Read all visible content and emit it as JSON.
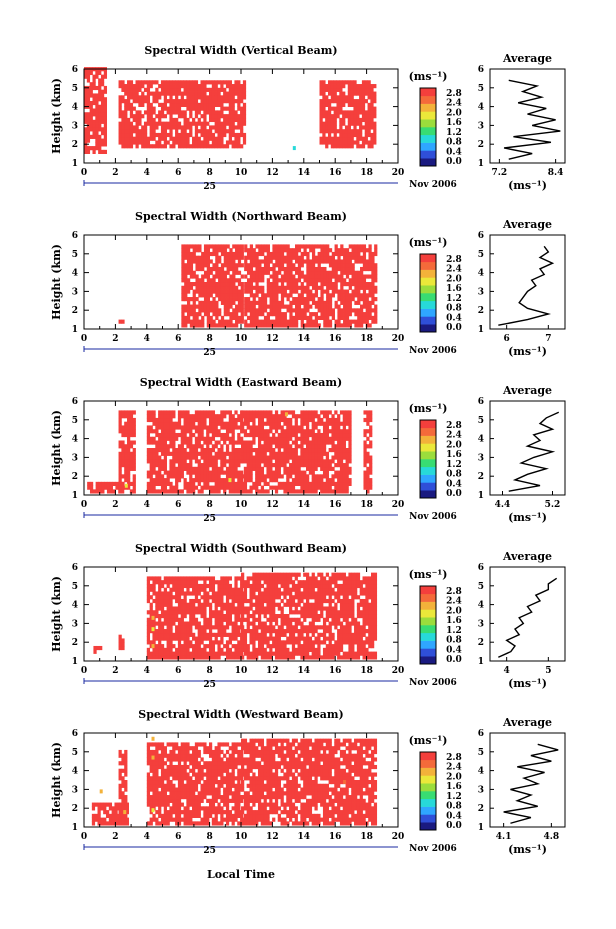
{
  "chart_data": {
    "type": "heatmap",
    "shared": {
      "time_ticks": [
        "0",
        "2",
        "4",
        "6",
        "8",
        "10",
        "12",
        "14",
        "16",
        "18",
        "20"
      ],
      "time_range": [
        0,
        20
      ],
      "height_ticks": [
        "1",
        "2",
        "3",
        "4",
        "5",
        "6"
      ],
      "height_range": [
        1,
        6
      ],
      "ylabel": "Height (km)",
      "xlabel": "Local Time",
      "day_label": "25",
      "date_label": "Nov 2006",
      "unit_label": "(ms⁻¹)",
      "colorbar_ticks": [
        "0.0",
        "0.4",
        "0.8",
        "1.2",
        "1.6",
        "2.0",
        "2.4",
        "2.8"
      ],
      "colorbar_range": [
        0,
        3.0
      ],
      "colormap": [
        "#1a1a80",
        "#2f4fd8",
        "#2fa6ff",
        "#27d9d9",
        "#38dc72",
        "#9bdd3c",
        "#ebe83a",
        "#f3b23a",
        "#f46a3a",
        "#f43f3c"
      ],
      "average_title": "Average",
      "average_unit": "(ms⁻¹)"
    },
    "panels": [
      {
        "title": "Spectral Width (Vertical Beam)",
        "coverage": [
          [
            0,
            1.3,
            1.5,
            6.0
          ],
          [
            2.2,
            10.3,
            1.8,
            5.4
          ],
          [
            15.0,
            18.5,
            1.8,
            5.4
          ]
        ],
        "dominant_value": 3.0,
        "sparse_points": [
          [
            13.3,
            1.7,
            1.1
          ]
        ],
        "average_profile": {
          "xticks": [
            "7.2",
            "8.4"
          ],
          "xrange": [
            7.0,
            8.6
          ],
          "heights": [
            1.2,
            1.5,
            1.8,
            2.1,
            2.4,
            2.7,
            3.0,
            3.3,
            3.6,
            3.9,
            4.2,
            4.5,
            4.8,
            5.1,
            5.4
          ],
          "values": [
            7.4,
            7.9,
            7.3,
            8.3,
            7.5,
            8.5,
            7.9,
            8.4,
            7.8,
            8.2,
            7.6,
            8.1,
            7.7,
            8.0,
            7.4
          ]
        }
      },
      {
        "title": "Spectral Width (Northward Beam)",
        "coverage": [
          [
            2.2,
            2.5,
            1.1,
            1.4
          ],
          [
            6.2,
            10.0,
            1.1,
            5.4
          ],
          [
            10.2,
            18.5,
            1.1,
            5.4
          ]
        ],
        "dominant_value": 3.0,
        "sparse_points": [],
        "average_profile": {
          "xticks": [
            "6",
            "7"
          ],
          "xrange": [
            5.6,
            7.4
          ],
          "heights": [
            1.2,
            1.5,
            1.8,
            2.1,
            2.4,
            2.7,
            3.0,
            3.3,
            3.6,
            3.9,
            4.2,
            4.5,
            4.8,
            5.1,
            5.4
          ],
          "values": [
            5.8,
            6.5,
            7.0,
            6.5,
            6.3,
            6.4,
            6.5,
            6.7,
            6.6,
            6.9,
            6.8,
            7.1,
            6.8,
            7.0,
            6.9
          ]
        }
      },
      {
        "title": "Spectral Width (Eastward Beam)",
        "coverage": [
          [
            0.2,
            2.5,
            1.1,
            1.6
          ],
          [
            2.2,
            3.2,
            1.1,
            5.4
          ],
          [
            4.0,
            10.0,
            1.1,
            5.4
          ],
          [
            10.0,
            17.0,
            1.1,
            5.4
          ],
          [
            17.8,
            18.3,
            1.1,
            5.4
          ]
        ],
        "dominant_value": 3.0,
        "sparse_points": [
          [
            2.6,
            1.4,
            1.8
          ],
          [
            9.2,
            1.7,
            2.0
          ],
          [
            12.8,
            5.2,
            2.2
          ]
        ],
        "average_profile": {
          "xticks": [
            "4.4",
            "5.2"
          ],
          "xrange": [
            4.2,
            5.4
          ],
          "heights": [
            1.2,
            1.5,
            1.8,
            2.1,
            2.4,
            2.7,
            3.0,
            3.3,
            3.6,
            3.9,
            4.2,
            4.5,
            4.8,
            5.1,
            5.4
          ],
          "values": [
            4.5,
            5.0,
            4.6,
            4.8,
            5.1,
            4.7,
            4.9,
            5.2,
            4.8,
            5.0,
            4.9,
            5.2,
            5.0,
            5.1,
            5.3
          ]
        }
      },
      {
        "title": "Spectral Width (Southward Beam)",
        "coverage": [
          [
            0.6,
            1.0,
            1.4,
            1.7
          ],
          [
            2.2,
            2.5,
            1.6,
            2.3
          ],
          [
            4.0,
            10.0,
            1.1,
            5.4
          ],
          [
            10.0,
            18.5,
            1.1,
            5.6
          ]
        ],
        "dominant_value": 3.0,
        "sparse_points": [
          [
            4.3,
            3.2,
            2.3
          ],
          [
            4.3,
            2.6,
            2.0
          ],
          [
            4.3,
            1.7,
            2.2
          ]
        ],
        "average_profile": {
          "xticks": [
            "4",
            "5"
          ],
          "xrange": [
            3.6,
            5.4
          ],
          "heights": [
            1.2,
            1.5,
            1.8,
            2.1,
            2.4,
            2.7,
            3.0,
            3.3,
            3.6,
            3.9,
            4.2,
            4.5,
            4.8,
            5.1,
            5.4
          ],
          "values": [
            3.8,
            4.1,
            4.2,
            4.0,
            4.3,
            4.2,
            4.4,
            4.3,
            4.6,
            4.5,
            4.8,
            4.7,
            5.0,
            5.0,
            5.2
          ]
        }
      },
      {
        "title": "Spectral Width (Westward Beam)",
        "coverage": [
          [
            0.5,
            2.8,
            1.1,
            2.3
          ],
          [
            2.2,
            2.7,
            1.1,
            5.0
          ],
          [
            4.0,
            10.0,
            1.1,
            5.4
          ],
          [
            10.0,
            18.5,
            1.1,
            5.6
          ]
        ],
        "dominant_value": 3.0,
        "sparse_points": [
          [
            1.0,
            2.8,
            2.3
          ],
          [
            4.3,
            5.6,
            2.1
          ],
          [
            4.3,
            4.6,
            2.4
          ],
          [
            2.5,
            1.7,
            2.2
          ],
          [
            4.3,
            1.8,
            1.9
          ],
          [
            16.5,
            3.3,
            2.6
          ]
        ],
        "average_profile": {
          "xticks": [
            "4.1",
            "4.8"
          ],
          "xrange": [
            3.9,
            5.0
          ],
          "heights": [
            1.2,
            1.5,
            1.8,
            2.1,
            2.4,
            2.7,
            3.0,
            3.3,
            3.6,
            3.9,
            4.2,
            4.5,
            4.8,
            5.1,
            5.4
          ],
          "values": [
            4.2,
            4.5,
            4.1,
            4.6,
            4.3,
            4.5,
            4.2,
            4.6,
            4.4,
            4.7,
            4.3,
            4.8,
            4.5,
            4.9,
            4.6
          ]
        }
      }
    ]
  }
}
